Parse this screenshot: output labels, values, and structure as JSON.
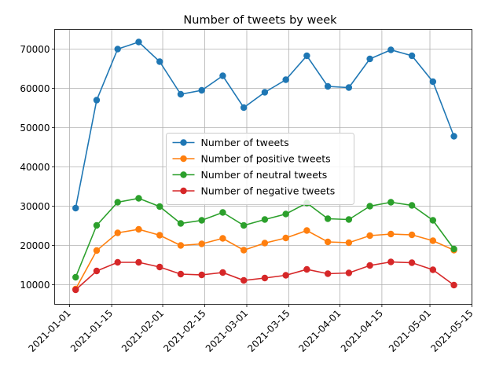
{
  "chart_data": {
    "type": "line",
    "title": "Number of tweets by week",
    "xlabel": "",
    "ylabel": "",
    "x": [
      "2021-01-03",
      "2021-01-10",
      "2021-01-17",
      "2021-01-24",
      "2021-01-31",
      "2021-02-07",
      "2021-02-14",
      "2021-02-21",
      "2021-02-28",
      "2021-03-07",
      "2021-03-14",
      "2021-03-21",
      "2021-03-28",
      "2021-04-04",
      "2021-04-11",
      "2021-04-18",
      "2021-04-25",
      "2021-05-02",
      "2021-05-09"
    ],
    "series": [
      {
        "name": "Number of tweets",
        "color": "#1f77b4",
        "values": [
          29500,
          57000,
          70000,
          71800,
          66800,
          58500,
          59500,
          63200,
          55100,
          59000,
          62200,
          68300,
          60500,
          60200,
          67500,
          69800,
          68300,
          61700,
          47800
        ]
      },
      {
        "name": "Number of positive tweets",
        "color": "#ff7f0e",
        "values": [
          8900,
          18700,
          23200,
          24100,
          22600,
          20000,
          20400,
          21800,
          18800,
          20600,
          21900,
          23800,
          20900,
          20700,
          22500,
          22900,
          22700,
          21200,
          18800
        ]
      },
      {
        "name": "Number of neutral tweets",
        "color": "#2ca02c",
        "values": [
          11900,
          25100,
          31000,
          32000,
          29900,
          25600,
          26400,
          28400,
          25100,
          26600,
          28000,
          30800,
          26800,
          26600,
          30000,
          31000,
          30200,
          26400,
          19100
        ]
      },
      {
        "name": "Number of negative tweets",
        "color": "#d62728",
        "values": [
          8700,
          13500,
          15700,
          15700,
          14500,
          12700,
          12500,
          13100,
          11100,
          11700,
          12400,
          13900,
          12800,
          13000,
          14900,
          15800,
          15600,
          13800,
          9900
        ]
      }
    ],
    "x_ticks": [
      "2021-01-01",
      "2021-01-15",
      "2021-02-01",
      "2021-02-15",
      "2021-03-01",
      "2021-03-15",
      "2021-04-01",
      "2021-04-15",
      "2021-05-01",
      "2021-05-15"
    ],
    "y_ticks": [
      10000,
      20000,
      30000,
      40000,
      50000,
      60000,
      70000
    ],
    "xlim": [
      "2020-12-27",
      "2021-05-15"
    ],
    "ylim": [
      5000,
      75000
    ],
    "grid": true,
    "legend_position": "center-right"
  }
}
